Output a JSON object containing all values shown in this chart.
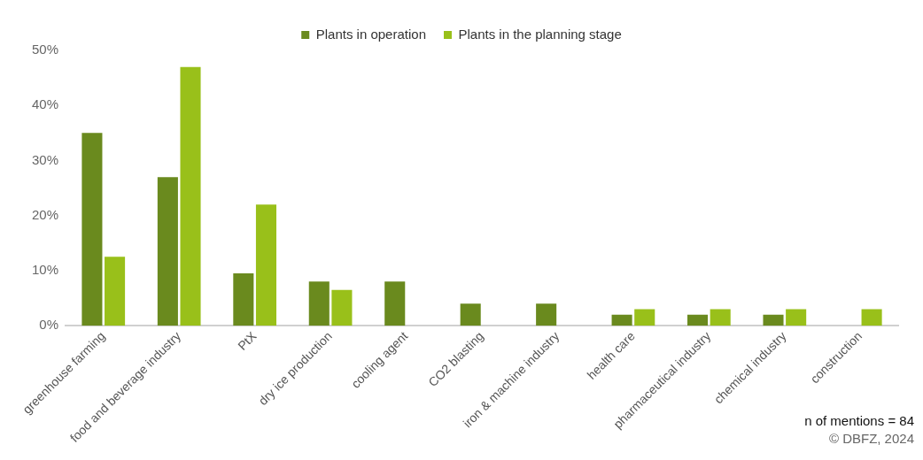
{
  "chart_data": {
    "type": "bar",
    "categories": [
      "greenhouse farming",
      "food and beverage industry",
      "PtX",
      "dry ice production",
      "cooling agent",
      "CO2 blasting",
      "iron & machine industry",
      "health care",
      "pharmaceutical industry",
      "chemical industry",
      "construction"
    ],
    "series": [
      {
        "name": "Plants in operation",
        "color": "#6a8a1e",
        "values": [
          35,
          27,
          9.5,
          8,
          8,
          4,
          4,
          2,
          2,
          2,
          0
        ]
      },
      {
        "name": "Plants in the planning stage",
        "color": "#99c01a",
        "values": [
          12.5,
          47,
          22,
          6.5,
          0,
          0,
          0,
          3,
          3,
          3,
          3
        ]
      }
    ],
    "ylim": [
      0,
      50
    ],
    "yticks": [
      {
        "value": 0,
        "label": "0%"
      },
      {
        "value": 10,
        "label": "10%"
      },
      {
        "value": 20,
        "label": "20%"
      },
      {
        "value": 30,
        "label": "30%"
      },
      {
        "value": 40,
        "label": "40%"
      },
      {
        "value": 50,
        "label": "50%"
      }
    ],
    "grid": false,
    "legend": "top",
    "annotations": [
      "n of mentions = 84",
      "© DBFZ, 2024"
    ]
  }
}
